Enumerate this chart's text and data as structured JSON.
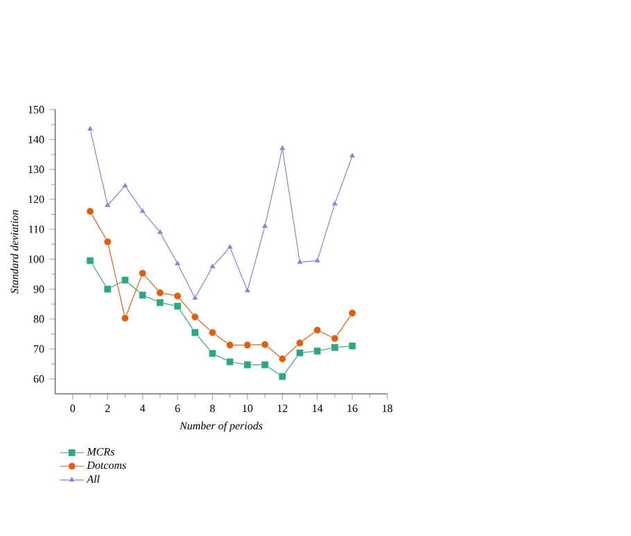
{
  "chart_data": {
    "type": "line",
    "xlabel": "Number of periods",
    "ylabel": "Standard deviation",
    "x": [
      1,
      2,
      3,
      4,
      5,
      6,
      7,
      8,
      9,
      10,
      11,
      12,
      13,
      14,
      15,
      16
    ],
    "xlim": [
      -1,
      18
    ],
    "xticks": [
      0,
      2,
      4,
      6,
      8,
      10,
      12,
      14,
      16,
      18
    ],
    "ylim": [
      55,
      150
    ],
    "yticks": [
      60,
      70,
      80,
      90,
      100,
      110,
      120,
      130,
      140,
      150
    ],
    "grid": false,
    "legend": "bottom left",
    "series": [
      {
        "name": "MCRs",
        "color": "#2ca87f",
        "marker": "square",
        "values": [
          99.5,
          90,
          93,
          88,
          85.5,
          84.3,
          75.5,
          68.5,
          65.7,
          64.7,
          64.7,
          60.8,
          68.7,
          69.3,
          70.5,
          71
        ]
      },
      {
        "name": "Dotcoms",
        "color": "#dd5f0f",
        "marker": "circle",
        "values": [
          116,
          105.8,
          80.3,
          95.3,
          88.8,
          87.7,
          80.7,
          75.5,
          71.3,
          71.3,
          71.5,
          66.7,
          72,
          76.3,
          73.5,
          82
        ]
      },
      {
        "name": "All",
        "color": "#8a7fd0",
        "marker": "triangle",
        "values": [
          143.5,
          118,
          124.5,
          116,
          109,
          98.5,
          87,
          97.5,
          104,
          89.5,
          111,
          137,
          99,
          99.5,
          118.5,
          134.5
        ]
      }
    ]
  }
}
